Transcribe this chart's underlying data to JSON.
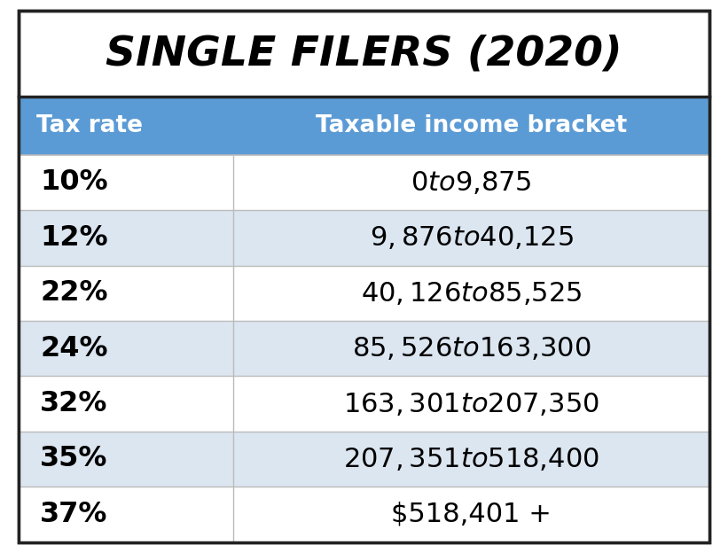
{
  "title": "SINGLE FILERS (2020)",
  "header": [
    "Tax rate",
    "Taxable income bracket"
  ],
  "rows": [
    [
      "10%",
      "$0 to $9,875"
    ],
    [
      "12%",
      "$9,876 to $40,125"
    ],
    [
      "22%",
      "$40,126 to $85,525"
    ],
    [
      "24%",
      "$85,526 to $163,300"
    ],
    [
      "32%",
      "$163,301 to $207,350"
    ],
    [
      "35%",
      "$207,351 to $518,400"
    ],
    [
      "37%",
      "$518,401 +"
    ]
  ],
  "header_bg": "#5B9BD5",
  "header_text": "#FFFFFF",
  "row_bg_odd": "#FFFFFF",
  "row_bg_even": "#DCE6F1",
  "border_color": "#BBBBBB",
  "title_color": "#000000",
  "outer_border": "#222222",
  "fig_bg": "#FFFFFF",
  "col_split": 0.32
}
